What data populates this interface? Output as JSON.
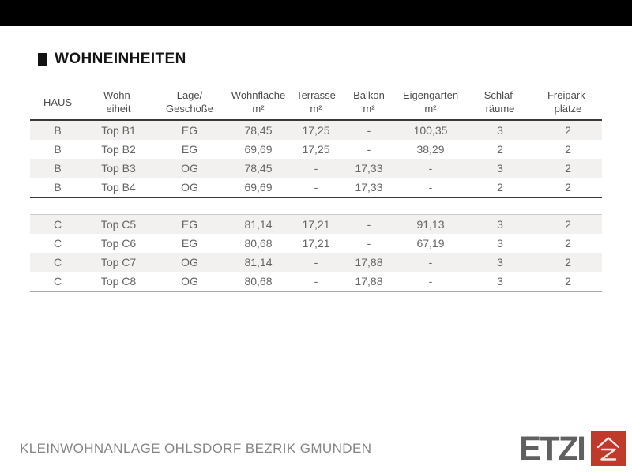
{
  "header": {
    "title": "WOHNEINHEITEN"
  },
  "table": {
    "columns": [
      "HAUS",
      "Wohn-\neiheit",
      "Lage/\nGeschoße",
      "Wohnfläche\nm²",
      "Terrasse\nm²",
      "Balkon\nm²",
      "Eigengarten\nm²",
      "Schlaf-\nräume",
      "Freipark-\nplätze"
    ],
    "groups": [
      {
        "name": "Haus B",
        "rows": [
          [
            "B",
            "Top B1",
            "EG",
            "78,45",
            "17,25",
            "-",
            "100,35",
            "3",
            "2"
          ],
          [
            "B",
            "Top B2",
            "EG",
            "69,69",
            "17,25",
            "-",
            "38,29",
            "2",
            "2"
          ],
          [
            "B",
            "Top B3",
            "OG",
            "78,45",
            "-",
            "17,33",
            "-",
            "3",
            "2"
          ],
          [
            "B",
            "Top B4",
            "OG",
            "69,69",
            "-",
            "17,33",
            "-",
            "2",
            "2"
          ]
        ]
      },
      {
        "name": "Haus C",
        "rows": [
          [
            "C",
            "Top C5",
            "EG",
            "81,14",
            "17,21",
            "-",
            "91,13",
            "3",
            "2"
          ],
          [
            "C",
            "Top C6",
            "EG",
            "80,68",
            "17,21",
            "-",
            "67,19",
            "3",
            "2"
          ],
          [
            "C",
            "Top C7",
            "OG",
            "81,14",
            "-",
            "17,88",
            "-",
            "3",
            "2"
          ],
          [
            "C",
            "Top C8",
            "OG",
            "80,68",
            "-",
            "17,88",
            "-",
            "3",
            "2"
          ]
        ]
      }
    ]
  },
  "footer": {
    "project_text": "KLEINWOHNANLAGE OHLSDORF BEZRIK GMUNDEN",
    "logo_text": "ETZI",
    "logo_icon": "etzi-house-monogram-icon",
    "colors": {
      "logo_red": "#c03a2b",
      "logo_gray": "#606060",
      "row_stripe": "#f2f1ef",
      "top_bar": "#000000"
    }
  }
}
